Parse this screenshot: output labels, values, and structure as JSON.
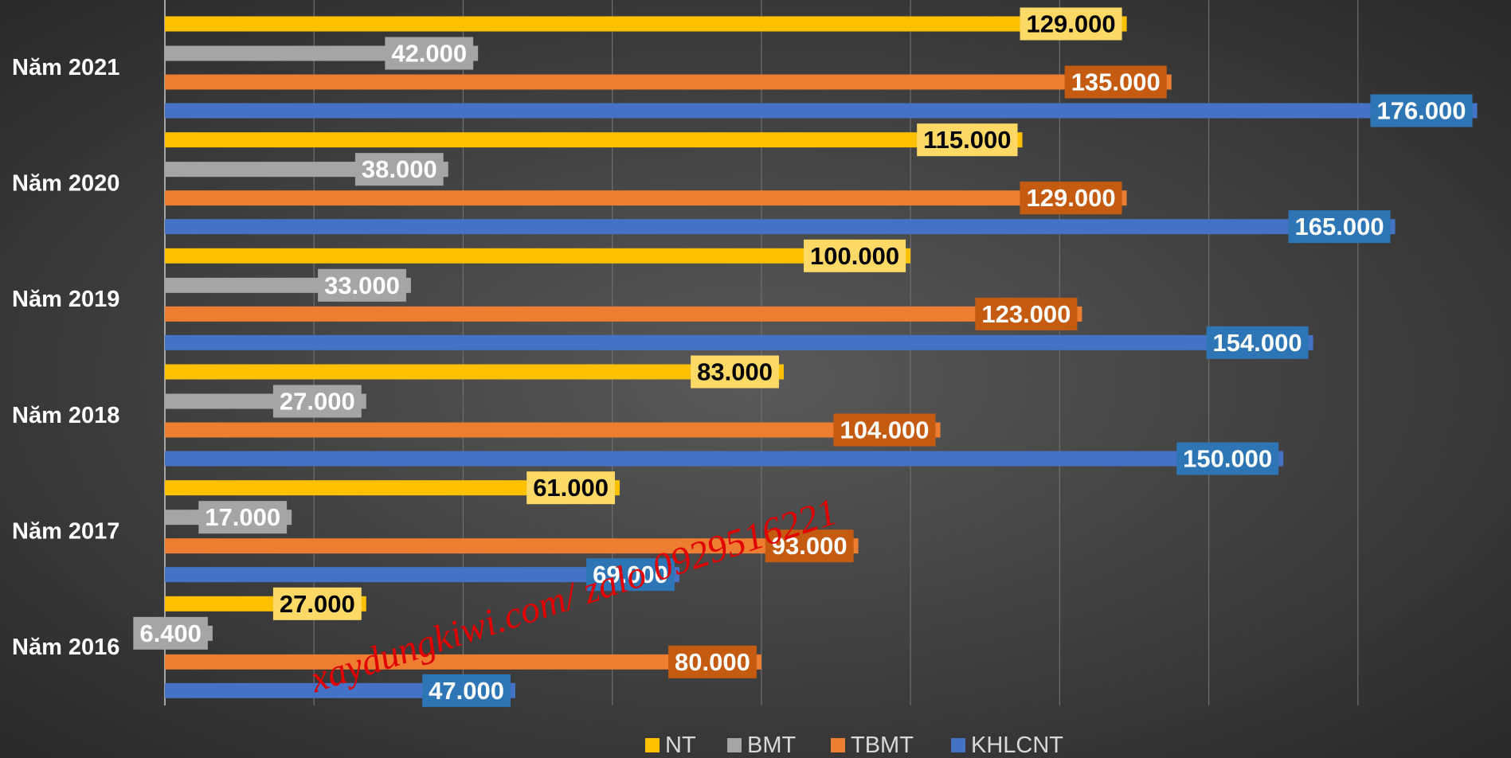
{
  "chart_data": {
    "type": "hbar",
    "categories": [
      "Năm 2016",
      "Năm 2017",
      "Năm 2018",
      "Năm 2019",
      "Năm 2020",
      "Năm 2021"
    ],
    "series": [
      {
        "name": "NT",
        "color": "#ffc000",
        "label_color": "#ffd966",
        "label_text_color": "#000000",
        "values": [
          27000,
          61000,
          83000,
          100000,
          115000,
          129000
        ],
        "value_labels": [
          "27.000",
          "61.000",
          "83.000",
          "100.000",
          "115.000",
          "129.000"
        ]
      },
      {
        "name": "BMT",
        "color": "#a5a5a5",
        "label_color": "#a5a5a5",
        "label_text_color": "#ffffff",
        "values": [
          6400,
          17000,
          27000,
          33000,
          38000,
          42000
        ],
        "value_labels": [
          "6.400",
          "17.000",
          "27.000",
          "33.000",
          "38.000",
          "42.000"
        ]
      },
      {
        "name": "TBMT",
        "color": "#ed7d31",
        "label_color": "#c55a11",
        "label_text_color": "#ffffff",
        "values": [
          80000,
          93000,
          104000,
          123000,
          129000,
          135000
        ],
        "value_labels": [
          "80.000",
          "93.000",
          "104.000",
          "123.000",
          "129.000",
          "135.000"
        ]
      },
      {
        "name": "KHLCNT",
        "color": "#4472c4",
        "label_color": "#2e75b6",
        "label_text_color": "#ffffff",
        "values": [
          47000,
          69000,
          150000,
          154000,
          165000,
          176000
        ],
        "value_labels": [
          "47.000",
          "69.000",
          "150.000",
          "154.000",
          "165.000",
          "176.000"
        ]
      }
    ],
    "xlim": [
      0,
      180000
    ],
    "xticks": [
      0,
      20000,
      40000,
      60000,
      80000,
      100000,
      120000,
      140000,
      160000
    ],
    "grid": true,
    "legend": "bottom",
    "annotation": "xaydungkiwi.com/ zalo 0929516221"
  }
}
